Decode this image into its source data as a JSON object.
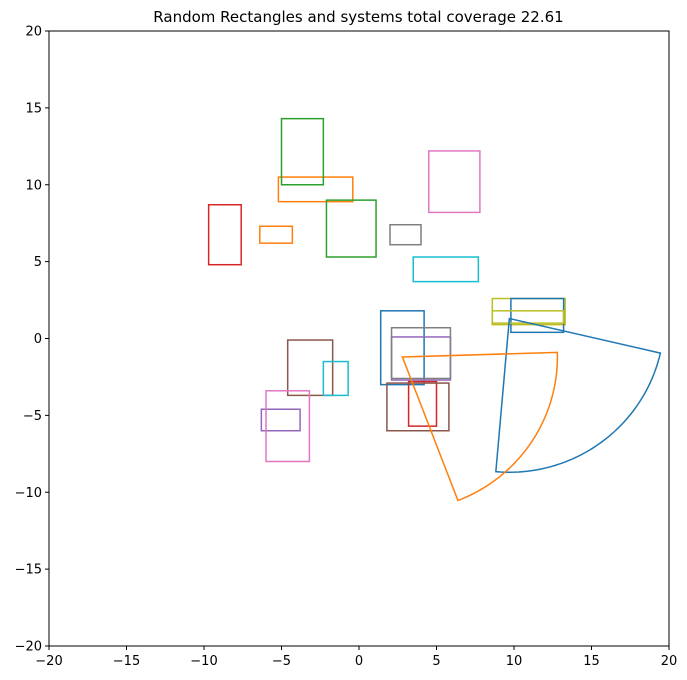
{
  "chart_data": {
    "type": "shapes",
    "title": "Random Rectangles and systems total coverage 22.61",
    "xlim": [
      -20,
      20
    ],
    "ylim": [
      -20,
      20
    ],
    "grid": false,
    "x_ticks": [
      -20,
      -15,
      -10,
      -5,
      0,
      5,
      10,
      15,
      20
    ],
    "y_ticks": [
      -20,
      -15,
      -10,
      -5,
      0,
      5,
      10,
      15,
      20
    ],
    "x_tick_labels": [
      "−20",
      "−15",
      "−10",
      "−5",
      "0",
      "5",
      "10",
      "15",
      "20"
    ],
    "y_tick_labels": [
      "−20",
      "−15",
      "−10",
      "−5",
      "0",
      "5",
      "10",
      "15",
      "20"
    ],
    "rectangles": [
      {
        "x0": 1.4,
        "y0": -3.0,
        "x1": 4.2,
        "y1": 1.8,
        "color": "#1f77b4"
      },
      {
        "x0": -5.2,
        "y0": 8.9,
        "x1": -0.4,
        "y1": 10.5,
        "color": "#ff7f0e"
      },
      {
        "x0": -2.1,
        "y0": 5.3,
        "x1": 1.1,
        "y1": 9.0,
        "color": "#2ca02c"
      },
      {
        "x0": 3.2,
        "y0": -5.7,
        "x1": 5.0,
        "y1": -2.8,
        "color": "#d62728"
      },
      {
        "x0": 2.1,
        "y0": -2.7,
        "x1": 5.9,
        "y1": 0.1,
        "color": "#9467bd"
      },
      {
        "x0": 1.8,
        "y0": -6.0,
        "x1": 5.8,
        "y1": -2.9,
        "color": "#8c564b"
      },
      {
        "x0": 4.5,
        "y0": 8.2,
        "x1": 7.8,
        "y1": 12.2,
        "color": "#e377c2"
      },
      {
        "x0": 2.0,
        "y0": 6.1,
        "x1": 4.0,
        "y1": 7.4,
        "color": "#7f7f7f"
      },
      {
        "x0": 8.6,
        "y0": 0.9,
        "x1": 13.3,
        "y1": 2.6,
        "color": "#bcbd22"
      },
      {
        "x0": 3.5,
        "y0": 3.7,
        "x1": 7.7,
        "y1": 5.3,
        "color": "#17becf"
      },
      {
        "x0": 9.8,
        "y0": 0.4,
        "x1": 13.2,
        "y1": 2.6,
        "color": "#1f77b4"
      },
      {
        "x0": -6.4,
        "y0": 6.2,
        "x1": -4.3,
        "y1": 7.3,
        "color": "#ff7f0e"
      },
      {
        "x0": -5.0,
        "y0": 10.0,
        "x1": -2.3,
        "y1": 14.3,
        "color": "#2ca02c"
      },
      {
        "x0": -9.7,
        "y0": 4.8,
        "x1": -7.6,
        "y1": 8.7,
        "color": "#d62728"
      },
      {
        "x0": -6.3,
        "y0": -6.0,
        "x1": -3.8,
        "y1": -4.6,
        "color": "#9467bd"
      },
      {
        "x0": -4.6,
        "y0": -3.7,
        "x1": -1.7,
        "y1": -0.1,
        "color": "#8c564b"
      },
      {
        "x0": -6.0,
        "y0": -8.0,
        "x1": -3.2,
        "y1": -3.4,
        "color": "#e377c2"
      },
      {
        "x0": 2.1,
        "y0": -2.6,
        "x1": 5.9,
        "y1": 0.7,
        "color": "#7f7f7f"
      },
      {
        "x0": 8.6,
        "y0": 1.0,
        "x1": 13.2,
        "y1": 1.8,
        "color": "#bcbd22"
      },
      {
        "x0": -2.3,
        "y0": -3.7,
        "x1": -0.7,
        "y1": -1.5,
        "color": "#17becf"
      }
    ],
    "sectors": [
      {
        "apex": [
          9.7,
          1.3
        ],
        "r": 10.0,
        "theta1": -95.0,
        "theta2": -13.0,
        "color": "#1f77b4"
      },
      {
        "apex": [
          2.8,
          -1.2
        ],
        "r": 10.0,
        "theta1": -69.0,
        "theta2": 1.7,
        "color": "#ff7f0e"
      }
    ]
  }
}
